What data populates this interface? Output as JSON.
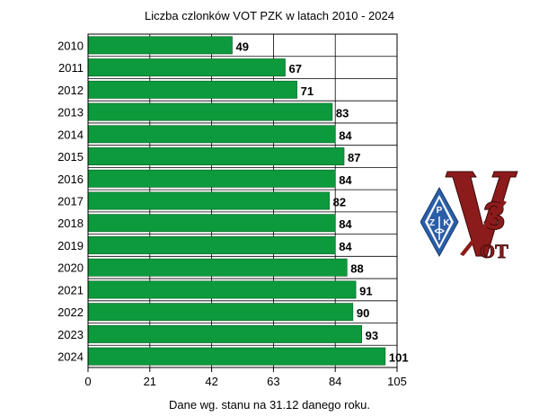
{
  "chart_data": {
    "type": "bar",
    "orientation": "horizontal",
    "title": "Liczba czlonków VOT PZK w latach 2010 - 2024",
    "note": "Dane wg. stanu na 31.12 danego roku.",
    "categories": [
      "2010",
      "2011",
      "2012",
      "2013",
      "2014",
      "2015",
      "2016",
      "2017",
      "2018",
      "2019",
      "2020",
      "2021",
      "2022",
      "2023",
      "2024"
    ],
    "values": [
      49,
      67,
      71,
      83,
      84,
      87,
      84,
      82,
      84,
      84,
      88,
      91,
      90,
      93,
      101
    ],
    "xlim": [
      0,
      105
    ],
    "xticks": [
      0,
      21,
      42,
      63,
      84,
      105
    ],
    "grid": true,
    "bar_color": "#0c9a3c"
  },
  "logo": {
    "alt": "VOT PZK logo",
    "diamond_text": "PZK",
    "letter": "V",
    "number": "3",
    "subtext": "OT",
    "red": "#8c1b1b",
    "blue": "#2b5ea8"
  }
}
